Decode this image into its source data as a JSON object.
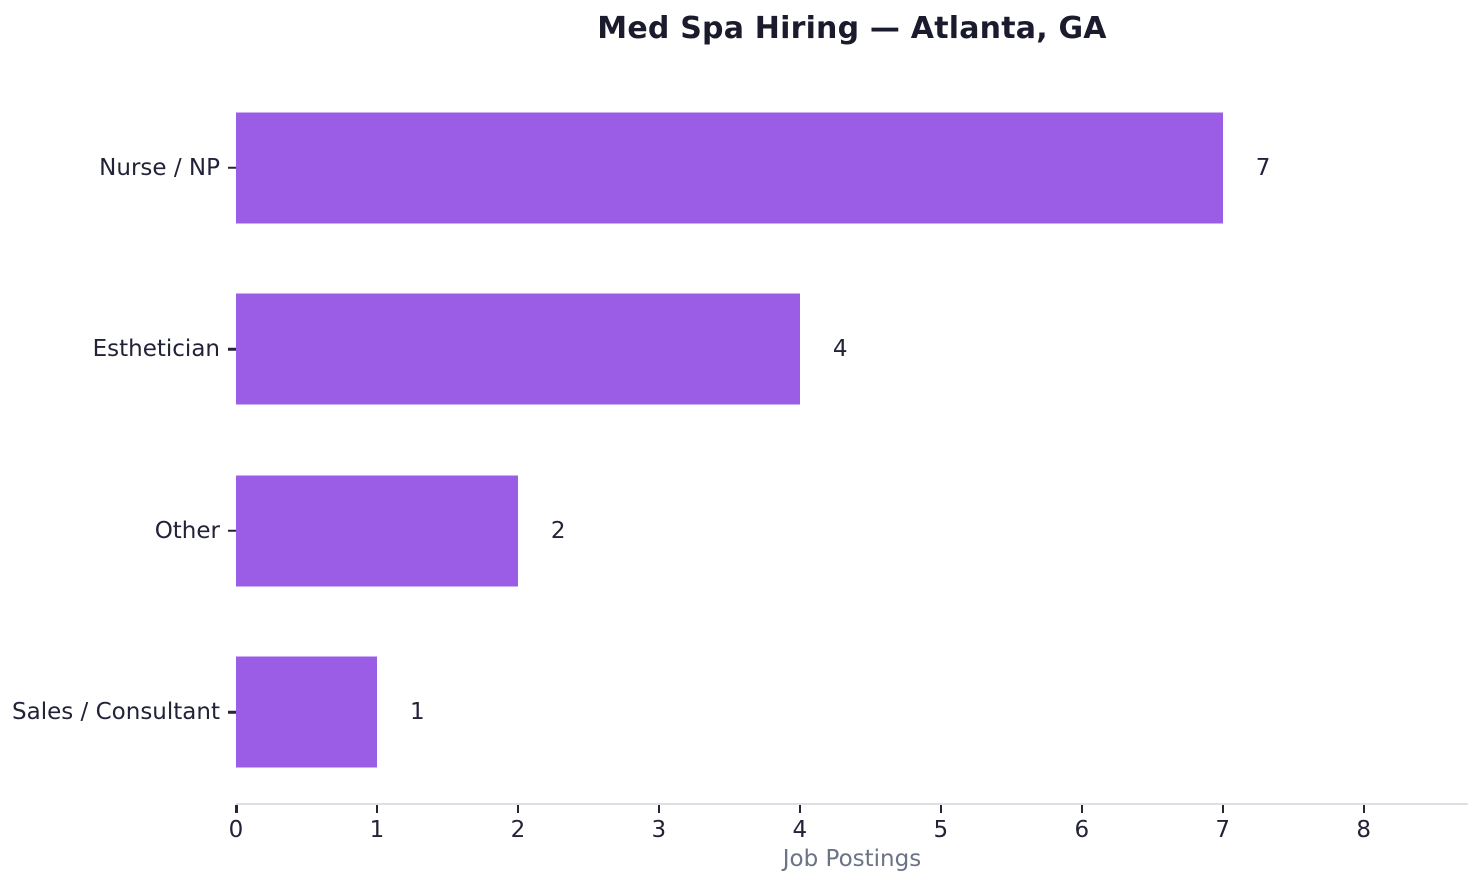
{
  "chart_data": {
    "type": "bar",
    "orientation": "horizontal",
    "title": "Med Spa Hiring — Atlanta, GA",
    "categories": [
      "Nurse / NP",
      "Esthetician",
      "Other",
      "Sales / Consultant"
    ],
    "values": [
      7,
      4,
      2,
      1
    ],
    "xlabel": "Job Postings",
    "ylabel": "",
    "xlim": [
      0,
      8.74
    ],
    "xticks": [
      0,
      1,
      2,
      3,
      4,
      5,
      6,
      7,
      8
    ],
    "grid": false,
    "legend": null,
    "colors": {
      "bar": "#9b5de5",
      "title_text": "#1b1b2e",
      "tick_text": "#222238",
      "value_text": "#222238",
      "axis_label_text": "#6b7386",
      "spine": "#dedee6",
      "tick_mark": "#262637",
      "background": "#ffffff"
    }
  }
}
